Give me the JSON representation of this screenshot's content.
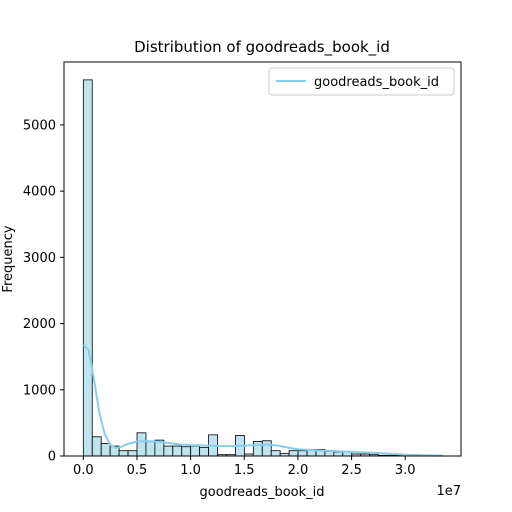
{
  "chart_data": {
    "type": "bar",
    "title": "Distribution of goodreads_book_id",
    "xlabel": "goodreads_book_id",
    "ylabel": "Frequency",
    "x_scale_label": "1e7",
    "xlim": [
      -1.8,
      35.2
    ],
    "ylim": [
      0,
      5950
    ],
    "x_ticks": [
      {
        "value": 0.0,
        "label": "0.0"
      },
      {
        "value": 0.5,
        "label": "0.5"
      },
      {
        "value": 1.0,
        "label": "1.0"
      },
      {
        "value": 1.5,
        "label": "1.5"
      },
      {
        "value": 2.0,
        "label": "2.0"
      },
      {
        "value": 2.5,
        "label": "2.5"
      },
      {
        "value": 3.0,
        "label": "3.0"
      }
    ],
    "y_ticks": [
      {
        "value": 0,
        "label": "0"
      },
      {
        "value": 1000,
        "label": "1000"
      },
      {
        "value": 2000,
        "label": "2000"
      },
      {
        "value": 3000,
        "label": "3000"
      },
      {
        "value": 4000,
        "label": "4000"
      },
      {
        "value": 5000,
        "label": "5000"
      }
    ],
    "bin_width": 0.0834,
    "bin_start": 0.0,
    "counts": [
      5680,
      290,
      190,
      150,
      80,
      80,
      350,
      220,
      240,
      150,
      150,
      140,
      150,
      130,
      320,
      20,
      20,
      310,
      30,
      220,
      230,
      80,
      40,
      80,
      80,
      100,
      100,
      70,
      60,
      60,
      30,
      30,
      20,
      10,
      10,
      10,
      10,
      10,
      10,
      10
    ],
    "kde": {
      "x": [
        0.0,
        0.05,
        0.1,
        0.15,
        0.2,
        0.25,
        0.3,
        0.35,
        0.4,
        0.5,
        0.6,
        0.7,
        0.8,
        0.9,
        1.0,
        1.1,
        1.2,
        1.3,
        1.4,
        1.5,
        1.6,
        1.7,
        1.8,
        1.9,
        2.0,
        2.2,
        2.4,
        2.6,
        2.8,
        3.0,
        3.2,
        3.35
      ],
      "y": [
        1680,
        1600,
        1150,
        650,
        330,
        170,
        125,
        135,
        175,
        220,
        225,
        215,
        195,
        175,
        165,
        160,
        155,
        150,
        150,
        155,
        165,
        170,
        160,
        130,
        100,
        85,
        70,
        55,
        40,
        20,
        10,
        5
      ]
    },
    "bar_fill": "#bfe4ef",
    "bar_edge": "#000000",
    "kde_color": "#87ceeb",
    "legend": {
      "label": "goodreads_book_id",
      "position": "top-right"
    },
    "grid": false
  }
}
